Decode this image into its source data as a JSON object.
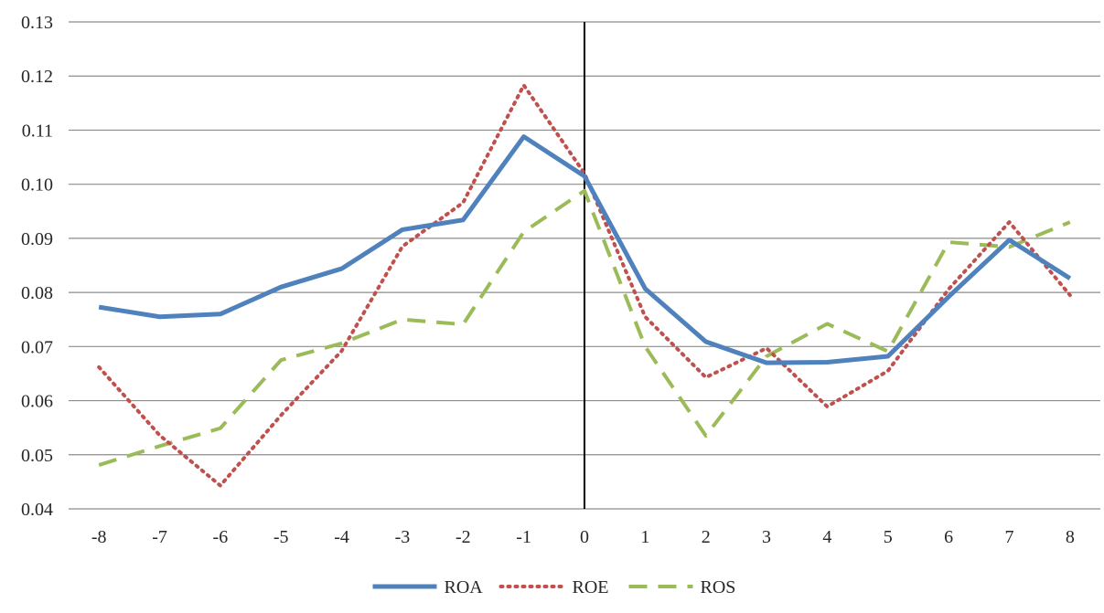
{
  "chart_data": {
    "type": "line",
    "title": "",
    "xlabel": "",
    "ylabel": "",
    "x": [
      -8,
      -7,
      -6,
      -5,
      -4,
      -3,
      -2,
      -1,
      0,
      1,
      2,
      3,
      4,
      5,
      6,
      7,
      8
    ],
    "x_tick_labels": [
      "-8",
      "-7",
      "-6",
      "-5",
      "-4",
      "-3",
      "-2",
      "-1",
      "0",
      "1",
      "2",
      "3",
      "4",
      "5",
      "6",
      "7",
      "8"
    ],
    "ylim": [
      0.04,
      0.13
    ],
    "y_ticks": [
      0.04,
      0.05,
      0.06,
      0.07,
      0.08,
      0.09,
      0.1,
      0.11,
      0.12,
      0.13
    ],
    "y_tick_labels": [
      "0.04",
      "0.05",
      "0.06",
      "0.07",
      "0.08",
      "0.09",
      "0.10",
      "0.11",
      "0.12",
      "0.13"
    ],
    "grid": "horizontal",
    "vertical_reference_line_at_x": 0,
    "legend_position": "bottom",
    "series": [
      {
        "name": "ROA",
        "style": "solid",
        "color": "#4F81BD",
        "values": [
          0.0773,
          0.0755,
          0.076,
          0.081,
          0.0844,
          0.0916,
          0.0934,
          0.1088,
          0.1015,
          0.0807,
          0.0709,
          0.067,
          0.0671,
          0.0682,
          0.0792,
          0.0897,
          0.0826
        ]
      },
      {
        "name": "ROE",
        "style": "dotted",
        "color": "#C0504D",
        "values": [
          0.0662,
          0.0536,
          0.0443,
          0.0573,
          0.0692,
          0.0885,
          0.0966,
          0.1183,
          0.102,
          0.0755,
          0.0643,
          0.0697,
          0.0589,
          0.0655,
          0.0806,
          0.093,
          0.0795
        ]
      },
      {
        "name": "ROS",
        "style": "dashed",
        "color": "#9BBB59",
        "values": [
          0.0481,
          0.0516,
          0.0549,
          0.0675,
          0.0706,
          0.075,
          0.0741,
          0.0912,
          0.0988,
          0.07,
          0.0535,
          0.0682,
          0.0742,
          0.0691,
          0.0893,
          0.0884,
          0.093
        ]
      }
    ]
  }
}
